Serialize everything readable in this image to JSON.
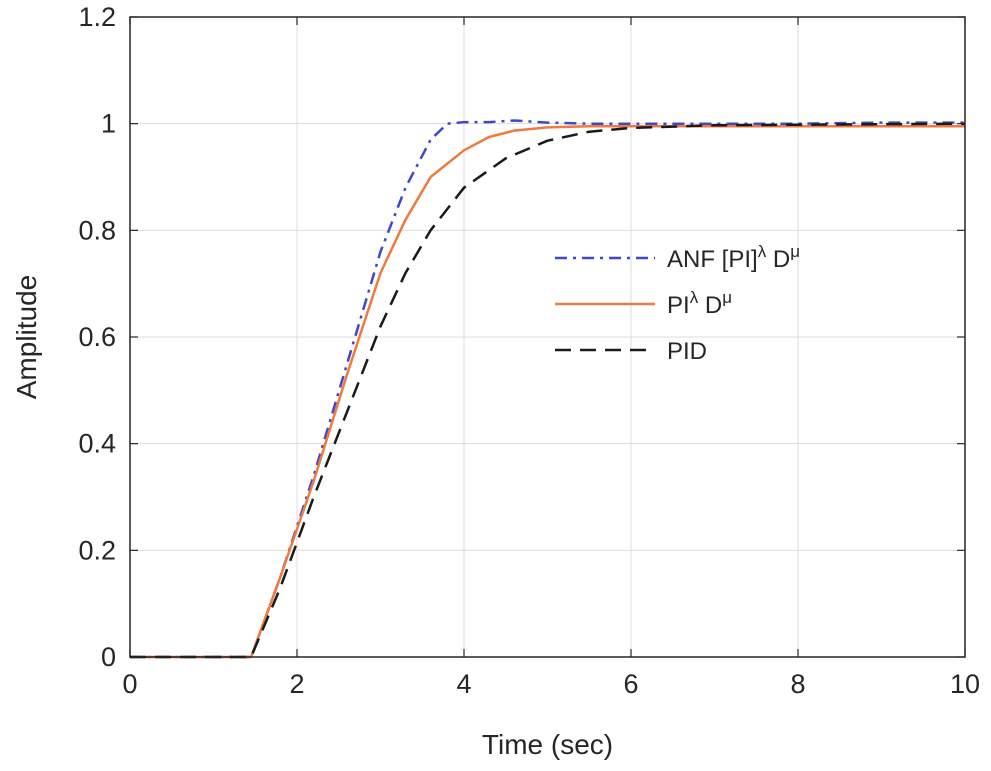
{
  "chart_data": {
    "type": "line",
    "title": "",
    "xlabel": "Time (sec)",
    "ylabel": "Amplitude",
    "xlim": [
      0,
      10
    ],
    "ylim": [
      0,
      1.2
    ],
    "xticks": [
      0,
      2,
      4,
      6,
      8,
      10
    ],
    "yticks": [
      0,
      0.2,
      0.4,
      0.6,
      0.8,
      1,
      1.2
    ],
    "xtick_labels": [
      "0",
      "2",
      "4",
      "6",
      "8",
      "10"
    ],
    "ytick_labels": [
      "0",
      "0.2",
      "0.4",
      "0.6",
      "0.8",
      "1",
      "1.2"
    ],
    "grid": true,
    "legend_position": "center-right",
    "series": [
      {
        "name": "ANF [PI]^λ D^μ",
        "label_base": "ANF [PI]",
        "label_sup1": "λ",
        "label_mid": " D",
        "label_sup2": "μ",
        "color": "#3f48cc",
        "style": "dashdot",
        "x": [
          0,
          1.45,
          1.8,
          2.2,
          2.6,
          3.0,
          3.3,
          3.6,
          3.8,
          4.0,
          4.3,
          4.6,
          5.0,
          5.5,
          6.0,
          7.0,
          8.0,
          9.0,
          10.0
        ],
        "y": [
          0,
          0,
          0.15,
          0.34,
          0.55,
          0.76,
          0.88,
          0.97,
          1.0,
          1.003,
          1.003,
          1.006,
          1.002,
          1.0,
          1.0,
          1.0,
          1.0,
          1.002,
          1.002
        ]
      },
      {
        "name": "PI^λ D^μ",
        "label_base": "PI",
        "label_sup1": "λ",
        "label_mid": " D",
        "label_sup2": "μ",
        "color": "#f07a3c",
        "style": "solid",
        "x": [
          0,
          1.45,
          1.8,
          2.2,
          2.6,
          3.0,
          3.3,
          3.6,
          4.0,
          4.3,
          4.6,
          5.0,
          5.5,
          6.0,
          7.0,
          8.0,
          9.0,
          10.0
        ],
        "y": [
          0,
          0,
          0.15,
          0.33,
          0.53,
          0.72,
          0.82,
          0.9,
          0.95,
          0.975,
          0.987,
          0.993,
          0.995,
          0.995,
          0.995,
          0.995,
          0.995,
          0.995
        ]
      },
      {
        "name": "PID",
        "label_base": "PID",
        "label_sup1": "",
        "label_mid": "",
        "label_sup2": "",
        "color": "#1a1a1a",
        "style": "dashed",
        "x": [
          0,
          1.45,
          1.8,
          2.2,
          2.6,
          3.0,
          3.3,
          3.6,
          4.0,
          4.5,
          5.0,
          5.5,
          6.0,
          7.0,
          8.0,
          9.0,
          10.0
        ],
        "y": [
          0,
          0,
          0.13,
          0.3,
          0.46,
          0.62,
          0.72,
          0.8,
          0.88,
          0.935,
          0.968,
          0.985,
          0.992,
          0.997,
          0.998,
          0.999,
          1.0
        ]
      }
    ]
  }
}
